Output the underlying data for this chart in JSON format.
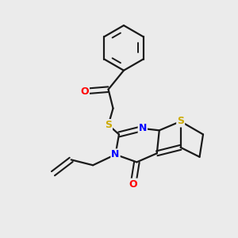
{
  "background_color": "#ebebeb",
  "bond_color": "#1a1a1a",
  "atom_colors": {
    "O": "#ff0000",
    "N": "#0000ff",
    "S": "#ccaa00",
    "C": "#1a1a1a"
  },
  "figsize": [
    3.0,
    3.0
  ],
  "dpi": 100
}
